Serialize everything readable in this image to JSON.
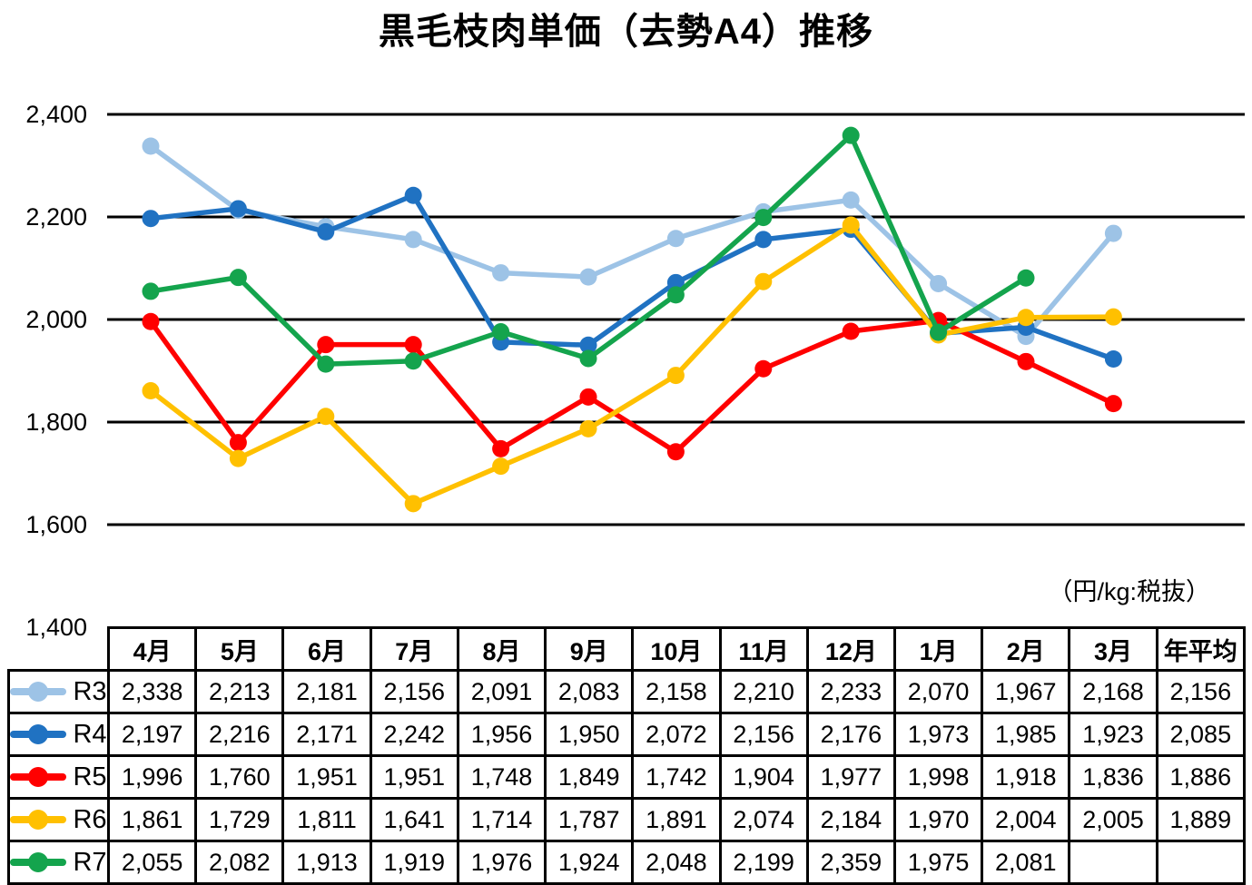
{
  "title": "黒毛枝肉単価（去勢A4）推移",
  "unit_note": "（円/kg:税抜）",
  "chart_data": {
    "type": "line",
    "categories": [
      "4月",
      "5月",
      "6月",
      "7月",
      "8月",
      "9月",
      "10月",
      "11月",
      "12月",
      "1月",
      "2月",
      "3月"
    ],
    "series": [
      {
        "name": "R3",
        "color": "#9DC3E6",
        "values": [
          2338,
          2213,
          2181,
          2156,
          2091,
          2083,
          2158,
          2210,
          2233,
          2070,
          1967,
          2168
        ],
        "annual_avg": 2156
      },
      {
        "name": "R4",
        "color": "#2072C2",
        "values": [
          2197,
          2216,
          2171,
          2242,
          1956,
          1950,
          2072,
          2156,
          2176,
          1973,
          1985,
          1923
        ],
        "annual_avg": 2085
      },
      {
        "name": "R5",
        "color": "#FF0000",
        "values": [
          1996,
          1760,
          1951,
          1951,
          1748,
          1849,
          1742,
          1904,
          1977,
          1998,
          1918,
          1836
        ],
        "annual_avg": 1886
      },
      {
        "name": "R6",
        "color": "#FFC000",
        "values": [
          1861,
          1729,
          1811,
          1641,
          1714,
          1787,
          1891,
          2074,
          2184,
          1970,
          2004,
          2005
        ],
        "annual_avg": 1889
      },
      {
        "name": "R7",
        "color": "#14A44D",
        "values": [
          2055,
          2082,
          1913,
          1919,
          1976,
          1924,
          2048,
          2199,
          2359,
          1975,
          2081,
          null
        ],
        "annual_avg": null
      }
    ],
    "y_ticks": [
      2400,
      2200,
      2000,
      1800,
      1600,
      1400
    ],
    "ylim": [
      1400,
      2400
    ],
    "grid": "horizontal-only",
    "legend_position": "table-left-column",
    "marker_style": "circle-on-line"
  },
  "table": {
    "annual_header": "年平均"
  }
}
